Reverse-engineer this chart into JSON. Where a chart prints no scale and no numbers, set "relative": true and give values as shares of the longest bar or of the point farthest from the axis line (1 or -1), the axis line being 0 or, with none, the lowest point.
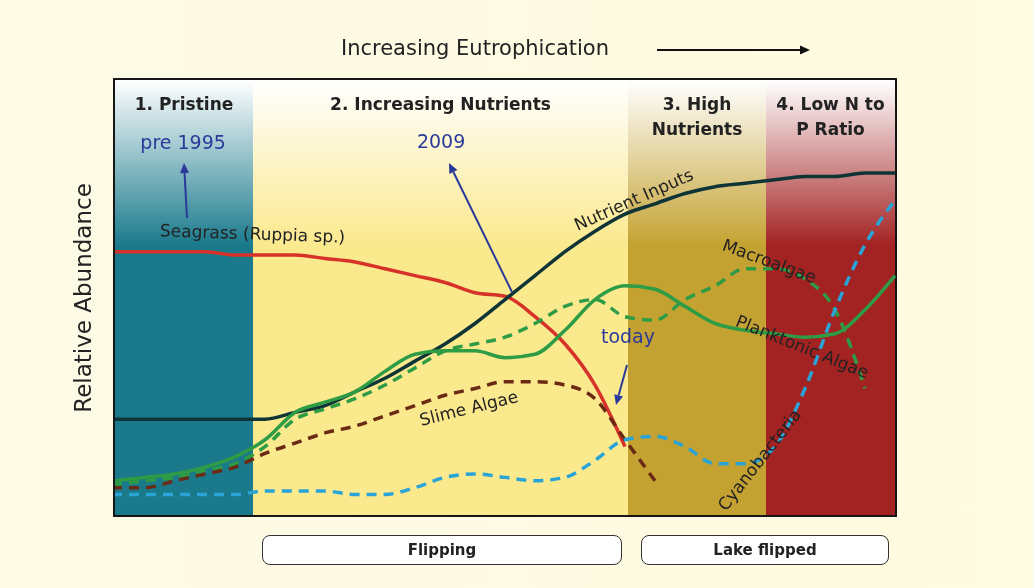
{
  "chart_data": {
    "type": "line",
    "relative": true,
    "title": "Increasing Eutrophication",
    "ylabel": "Relative Abundance",
    "categories": [
      null,
      null,
      null,
      null,
      null,
      null,
      null,
      null,
      null,
      null,
      null,
      null,
      null,
      null,
      null,
      null,
      null,
      null,
      null,
      null,
      null,
      null,
      null,
      null,
      null,
      null,
      null
    ],
    "series": [
      {
        "name": "Seagrass (Ruppia sp.)",
        "color": "#d7322a",
        "line_style": "solid",
        "values": [
          0.77,
          0.77,
          0.77,
          0.77,
          0.76,
          0.76,
          0.76,
          0.75,
          0.74,
          0.72,
          0.7,
          0.68,
          0.65,
          0.64,
          0.58,
          0.5,
          0.38,
          0.2,
          null,
          null,
          null,
          null,
          null,
          null,
          null,
          null,
          null
        ]
      },
      {
        "name": "Nutrient Inputs",
        "color": "#0f3436",
        "line_style": "solid",
        "values": [
          0.28,
          0.28,
          0.28,
          0.28,
          0.28,
          0.28,
          0.3,
          0.32,
          0.36,
          0.4,
          0.45,
          0.5,
          0.56,
          0.63,
          0.7,
          0.77,
          0.83,
          0.88,
          0.91,
          0.94,
          0.96,
          0.97,
          0.98,
          0.99,
          0.99,
          1.0,
          1.0
        ]
      },
      {
        "name": "Macroalgae",
        "color": "#2e9b45",
        "line_style": "dashed",
        "values": [
          0.09,
          0.1,
          0.11,
          0.13,
          0.15,
          0.2,
          0.28,
          0.31,
          0.34,
          0.38,
          0.43,
          0.48,
          0.5,
          0.52,
          0.56,
          0.61,
          0.63,
          0.58,
          0.57,
          0.63,
          0.67,
          0.72,
          0.72,
          0.69,
          0.6,
          0.37,
          null
        ]
      },
      {
        "name": "Planktonic Algae",
        "color": "#2e9b45",
        "line_style": "solid",
        "values": [
          0.1,
          0.11,
          0.12,
          0.14,
          0.17,
          0.22,
          0.3,
          0.33,
          0.36,
          0.42,
          0.47,
          0.48,
          0.48,
          0.46,
          0.47,
          0.54,
          0.63,
          0.67,
          0.66,
          0.61,
          0.56,
          0.54,
          0.53,
          0.52,
          0.53,
          0.6,
          0.7
        ]
      },
      {
        "name": "Slime Algae",
        "color": "#6b2a14",
        "line_style": "dashed",
        "values": [
          0.08,
          0.08,
          0.1,
          0.12,
          0.14,
          0.18,
          0.21,
          0.24,
          0.26,
          0.29,
          0.32,
          0.35,
          0.37,
          0.39,
          0.39,
          0.38,
          0.34,
          0.22,
          0.1,
          null,
          null,
          null,
          null,
          null,
          null,
          null,
          null
        ]
      },
      {
        "name": "Cyanobacteria",
        "color": "#2aa3d6",
        "line_style": "dashed",
        "values": [
          0.06,
          0.06,
          0.06,
          0.06,
          0.06,
          0.07,
          0.07,
          0.07,
          0.06,
          0.06,
          0.08,
          0.11,
          0.12,
          0.11,
          0.1,
          0.11,
          0.16,
          0.22,
          0.23,
          0.2,
          0.15,
          0.15,
          0.2,
          0.37,
          0.6,
          0.79,
          0.92
        ]
      }
    ],
    "annotations": [
      "1. Pristine",
      "2. Increasing Nutrients",
      "3. High\nNutrients",
      "4. Low N to\nP Ratio",
      "pre 1995",
      "2009",
      "today",
      "Flipping",
      "Lake flipped"
    ]
  }
}
